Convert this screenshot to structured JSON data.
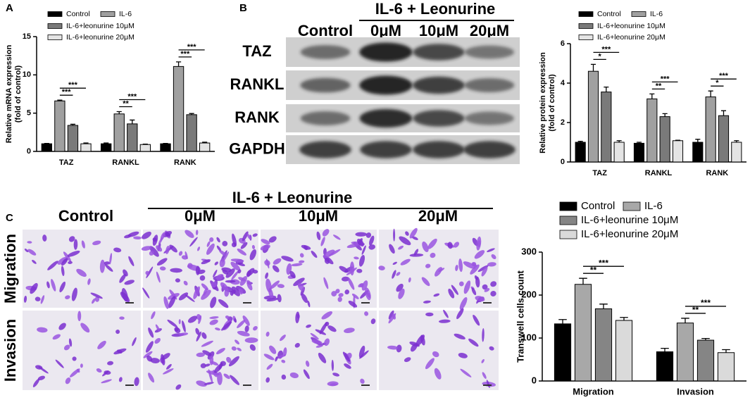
{
  "labels": {
    "a": "A",
    "b": "B",
    "c": "C"
  },
  "blot": {
    "group": "IL-6 + Leonurine",
    "columns": [
      "Control",
      "0μM",
      "10μM",
      "20μM"
    ],
    "rows": [
      "TAZ",
      "RANKL",
      "RANK",
      "GAPDH"
    ]
  },
  "microscopy": {
    "group": "IL-6 + Leonurine",
    "columns": [
      "Control",
      "0μM",
      "10μM",
      "20μM"
    ],
    "rows": [
      "Migration",
      "Invasion"
    ]
  },
  "chart_data": [
    {
      "type": "bar",
      "ylabel": [
        "Relative  mRNA expression",
        "(fold of control)"
      ],
      "categories": [
        "TAZ",
        "RANKL",
        "RANK"
      ],
      "ylim": [
        0,
        15
      ],
      "yticks": [
        0,
        5,
        10,
        15
      ],
      "series": [
        {
          "name": "Control",
          "color": "#000000",
          "values": [
            1,
            1,
            1
          ],
          "errors": [
            0.05,
            0.1,
            0.05
          ]
        },
        {
          "name": "IL-6",
          "color": "#a0a0a0",
          "values": [
            6.6,
            4.9,
            11.1
          ],
          "errors": [
            0.1,
            0.3,
            0.6
          ]
        },
        {
          "name": "IL-6+leonurine 10μM",
          "color": "#7a7a7a",
          "values": [
            3.4,
            3.6,
            4.8
          ],
          "errors": [
            0.15,
            0.5,
            0.15
          ]
        },
        {
          "name": "IL-6+leonurine 20μM",
          "color": "#e4e4e4",
          "values": [
            1.0,
            0.9,
            1.1
          ],
          "errors": [
            0.1,
            0.05,
            0.1
          ]
        }
      ],
      "significance": [
        [
          "***",
          "***"
        ],
        [
          "**",
          "***"
        ],
        [
          "***",
          "***"
        ]
      ]
    },
    {
      "type": "bar",
      "ylabel": [
        "Relative  protein expression",
        "(fold of control)"
      ],
      "categories": [
        "TAZ",
        "RANKL",
        "RANK"
      ],
      "ylim": [
        0,
        6
      ],
      "yticks": [
        0,
        2,
        4,
        6
      ],
      "series": [
        {
          "name": "Control",
          "color": "#000000",
          "values": [
            1.0,
            0.95,
            1.0
          ],
          "errors": [
            0.05,
            0.05,
            0.15
          ]
        },
        {
          "name": "IL-6",
          "color": "#a0a0a0",
          "values": [
            4.6,
            3.2,
            3.3
          ],
          "errors": [
            0.35,
            0.25,
            0.3
          ]
        },
        {
          "name": "IL-6+leonurine 10μM",
          "color": "#7a7a7a",
          "values": [
            3.55,
            2.3,
            2.35
          ],
          "errors": [
            0.25,
            0.15,
            0.25
          ]
        },
        {
          "name": "IL-6+leonurine 20μM",
          "color": "#e4e4e4",
          "values": [
            1.0,
            1.08,
            1.0
          ],
          "errors": [
            0.08,
            0.02,
            0.08
          ]
        }
      ],
      "significance": [
        [
          "*",
          "***"
        ],
        [
          "**",
          "***"
        ],
        [
          "*",
          "***"
        ]
      ]
    },
    {
      "type": "bar",
      "ylabel": [
        "Transwell cells count"
      ],
      "categories": [
        "Migration",
        "Invasion"
      ],
      "ylim": [
        0,
        300
      ],
      "yticks": [
        0,
        100,
        200,
        300
      ],
      "series": [
        {
          "name": "Control",
          "color": "#000000",
          "values": [
            133,
            68
          ],
          "errors": [
            10,
            8
          ]
        },
        {
          "name": "IL-6",
          "color": "#a8a8a8",
          "values": [
            225,
            135
          ],
          "errors": [
            14,
            11
          ]
        },
        {
          "name": "IL-6+leonurine 10μM",
          "color": "#858585",
          "values": [
            168,
            95
          ],
          "errors": [
            11,
            4
          ]
        },
        {
          "name": "IL-6+leonurine 20μM",
          "color": "#dadada",
          "values": [
            141,
            66
          ],
          "errors": [
            7,
            7
          ]
        }
      ],
      "significance": [
        [
          "**",
          "***"
        ],
        [
          "**",
          "***"
        ]
      ]
    }
  ]
}
